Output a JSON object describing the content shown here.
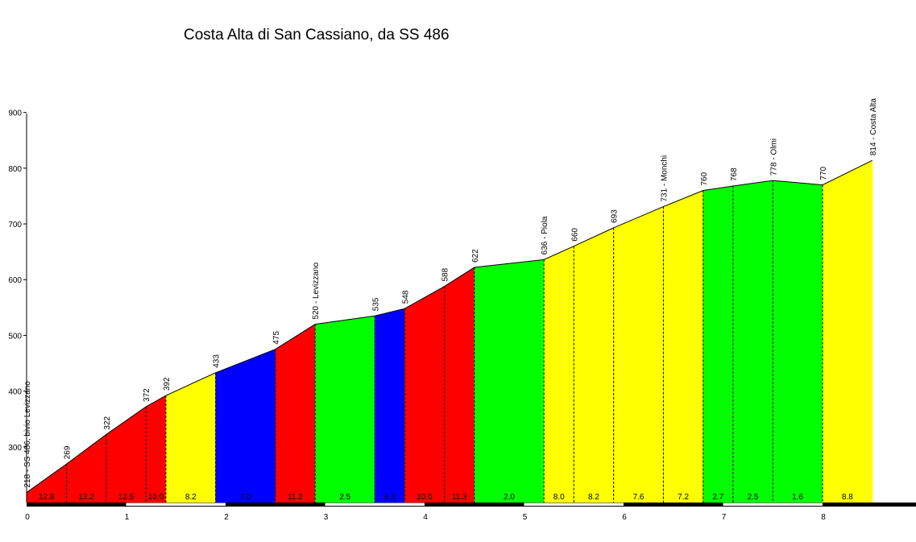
{
  "chart_data": {
    "type": "area",
    "title": "Costa Alta di San Cassiano, da SS 486",
    "xlabel": "",
    "ylabel": "",
    "xlim": [
      0,
      8.9
    ],
    "ylim": [
      205,
      900
    ],
    "x_ticks": [
      "0",
      "1",
      "2",
      "3",
      "4",
      "5",
      "6",
      "7",
      "8"
    ],
    "y_ticks": [
      "300",
      "400",
      "500",
      "600",
      "700",
      "800",
      "900"
    ],
    "grid": false,
    "legend": "none",
    "points": [
      {
        "x": 0.0,
        "y": 218,
        "label": "218 - SS 486, bivio Levizzano"
      },
      {
        "x": 0.4,
        "y": 269,
        "label": "269"
      },
      {
        "x": 0.8,
        "y": 322,
        "label": "322"
      },
      {
        "x": 1.2,
        "y": 372,
        "label": "372"
      },
      {
        "x": 1.4,
        "y": 392,
        "label": "392"
      },
      {
        "x": 1.9,
        "y": 433,
        "label": "433"
      },
      {
        "x": 2.5,
        "y": 475,
        "label": "475"
      },
      {
        "x": 2.9,
        "y": 520,
        "label": "520 - Levizzano"
      },
      {
        "x": 3.5,
        "y": 535,
        "label": "535"
      },
      {
        "x": 3.8,
        "y": 548,
        "label": "548"
      },
      {
        "x": 4.2,
        "y": 588,
        "label": "588"
      },
      {
        "x": 4.5,
        "y": 622,
        "label": "622"
      },
      {
        "x": 5.2,
        "y": 636,
        "label": "636 - Piola"
      },
      {
        "x": 5.5,
        "y": 660,
        "label": "660"
      },
      {
        "x": 5.9,
        "y": 693,
        "label": "693"
      },
      {
        "x": 6.4,
        "y": 731,
        "label": "731 - Monchi"
      },
      {
        "x": 6.8,
        "y": 760,
        "label": "760"
      },
      {
        "x": 7.1,
        "y": 768,
        "label": "768"
      },
      {
        "x": 7.5,
        "y": 778,
        "label": "778 - Olmi"
      },
      {
        "x": 8.0,
        "y": 770,
        "label": "770"
      },
      {
        "x": 8.5,
        "y": 814,
        "label": "814 - Costa Alta"
      }
    ],
    "segments": [
      {
        "grade": "12.8",
        "color": "#ff0000",
        "fill_start": 0
      },
      {
        "grade": "13.2",
        "color": "#ff0000",
        "fill_start": 1
      },
      {
        "grade": "12.5",
        "color": "#ff0000",
        "fill_start": 2
      },
      {
        "grade": "10.0",
        "color": "#ff0000",
        "fill_start": 3
      },
      {
        "grade": "8.2",
        "color": "#ffff00",
        "fill_start": 4
      },
      {
        "grade": "7.0",
        "color": "#0000ff",
        "fill_start": 5
      },
      {
        "grade": "11.2",
        "color": "#ff0000",
        "fill_start": 6
      },
      {
        "grade": "2.5",
        "color": "#00ff00",
        "fill_start": 7
      },
      {
        "grade": "4.3",
        "color": "#0000ff",
        "fill_start": 8
      },
      {
        "grade": "10.0",
        "color": "#ff0000",
        "fill_start": 9
      },
      {
        "grade": "11.3",
        "color": "#ff0000",
        "fill_start": 10
      },
      {
        "grade": "2.0",
        "color": "#00ff00",
        "fill_start": 11
      },
      {
        "grade": "8.0",
        "color": "#ffff00",
        "fill_start": 12
      },
      {
        "grade": "8.2",
        "color": "#ffff00",
        "fill_start": 13
      },
      {
        "grade": "7.6",
        "color": "#ffff00",
        "fill_start": 14
      },
      {
        "grade": "7.2",
        "color": "#ffff00",
        "fill_start": 15
      },
      {
        "grade": "2.7",
        "color": "#00ff00",
        "fill_start": 16
      },
      {
        "grade": "2.5",
        "color": "#00ff00",
        "fill_start": 17
      },
      {
        "grade": "1.6",
        "color": "#00ff00",
        "fill_start": 18
      },
      {
        "grade": "8.8",
        "color": "#ffff00",
        "fill_start": 19
      }
    ]
  }
}
